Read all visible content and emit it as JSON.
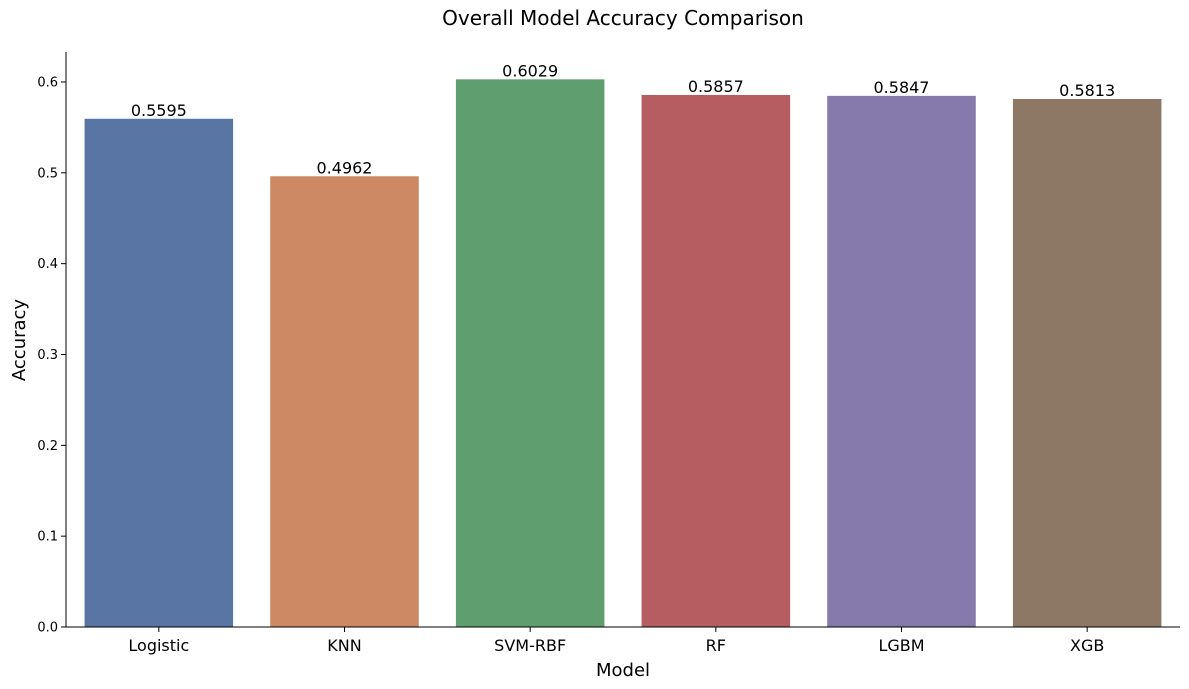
{
  "chart_data": {
    "type": "bar",
    "title": "Overall Model Accuracy Comparison",
    "xlabel": "Model",
    "ylabel": "Accuracy",
    "categories": [
      "Logistic",
      "KNN",
      "SVM-RBF",
      "RF",
      "LGBM",
      "XGB"
    ],
    "values": [
      0.5595,
      0.4962,
      0.6029,
      0.5857,
      0.5847,
      0.5813
    ],
    "data_labels": [
      "0.5595",
      "0.4962",
      "0.6029",
      "0.5857",
      "0.5847",
      "0.5813"
    ],
    "colors": [
      "#5975a4",
      "#cc8963",
      "#5f9e6e",
      "#b55d60",
      "#857aab",
      "#8d7866"
    ],
    "yticks": [
      0.0,
      0.1,
      0.2,
      0.3,
      0.4,
      0.5,
      0.6
    ],
    "ytick_labels": [
      "0.0",
      "0.1",
      "0.2",
      "0.3",
      "0.4",
      "0.5",
      "0.6"
    ],
    "ylim": [
      0,
      0.633
    ],
    "grid": false,
    "legend": "none"
  }
}
